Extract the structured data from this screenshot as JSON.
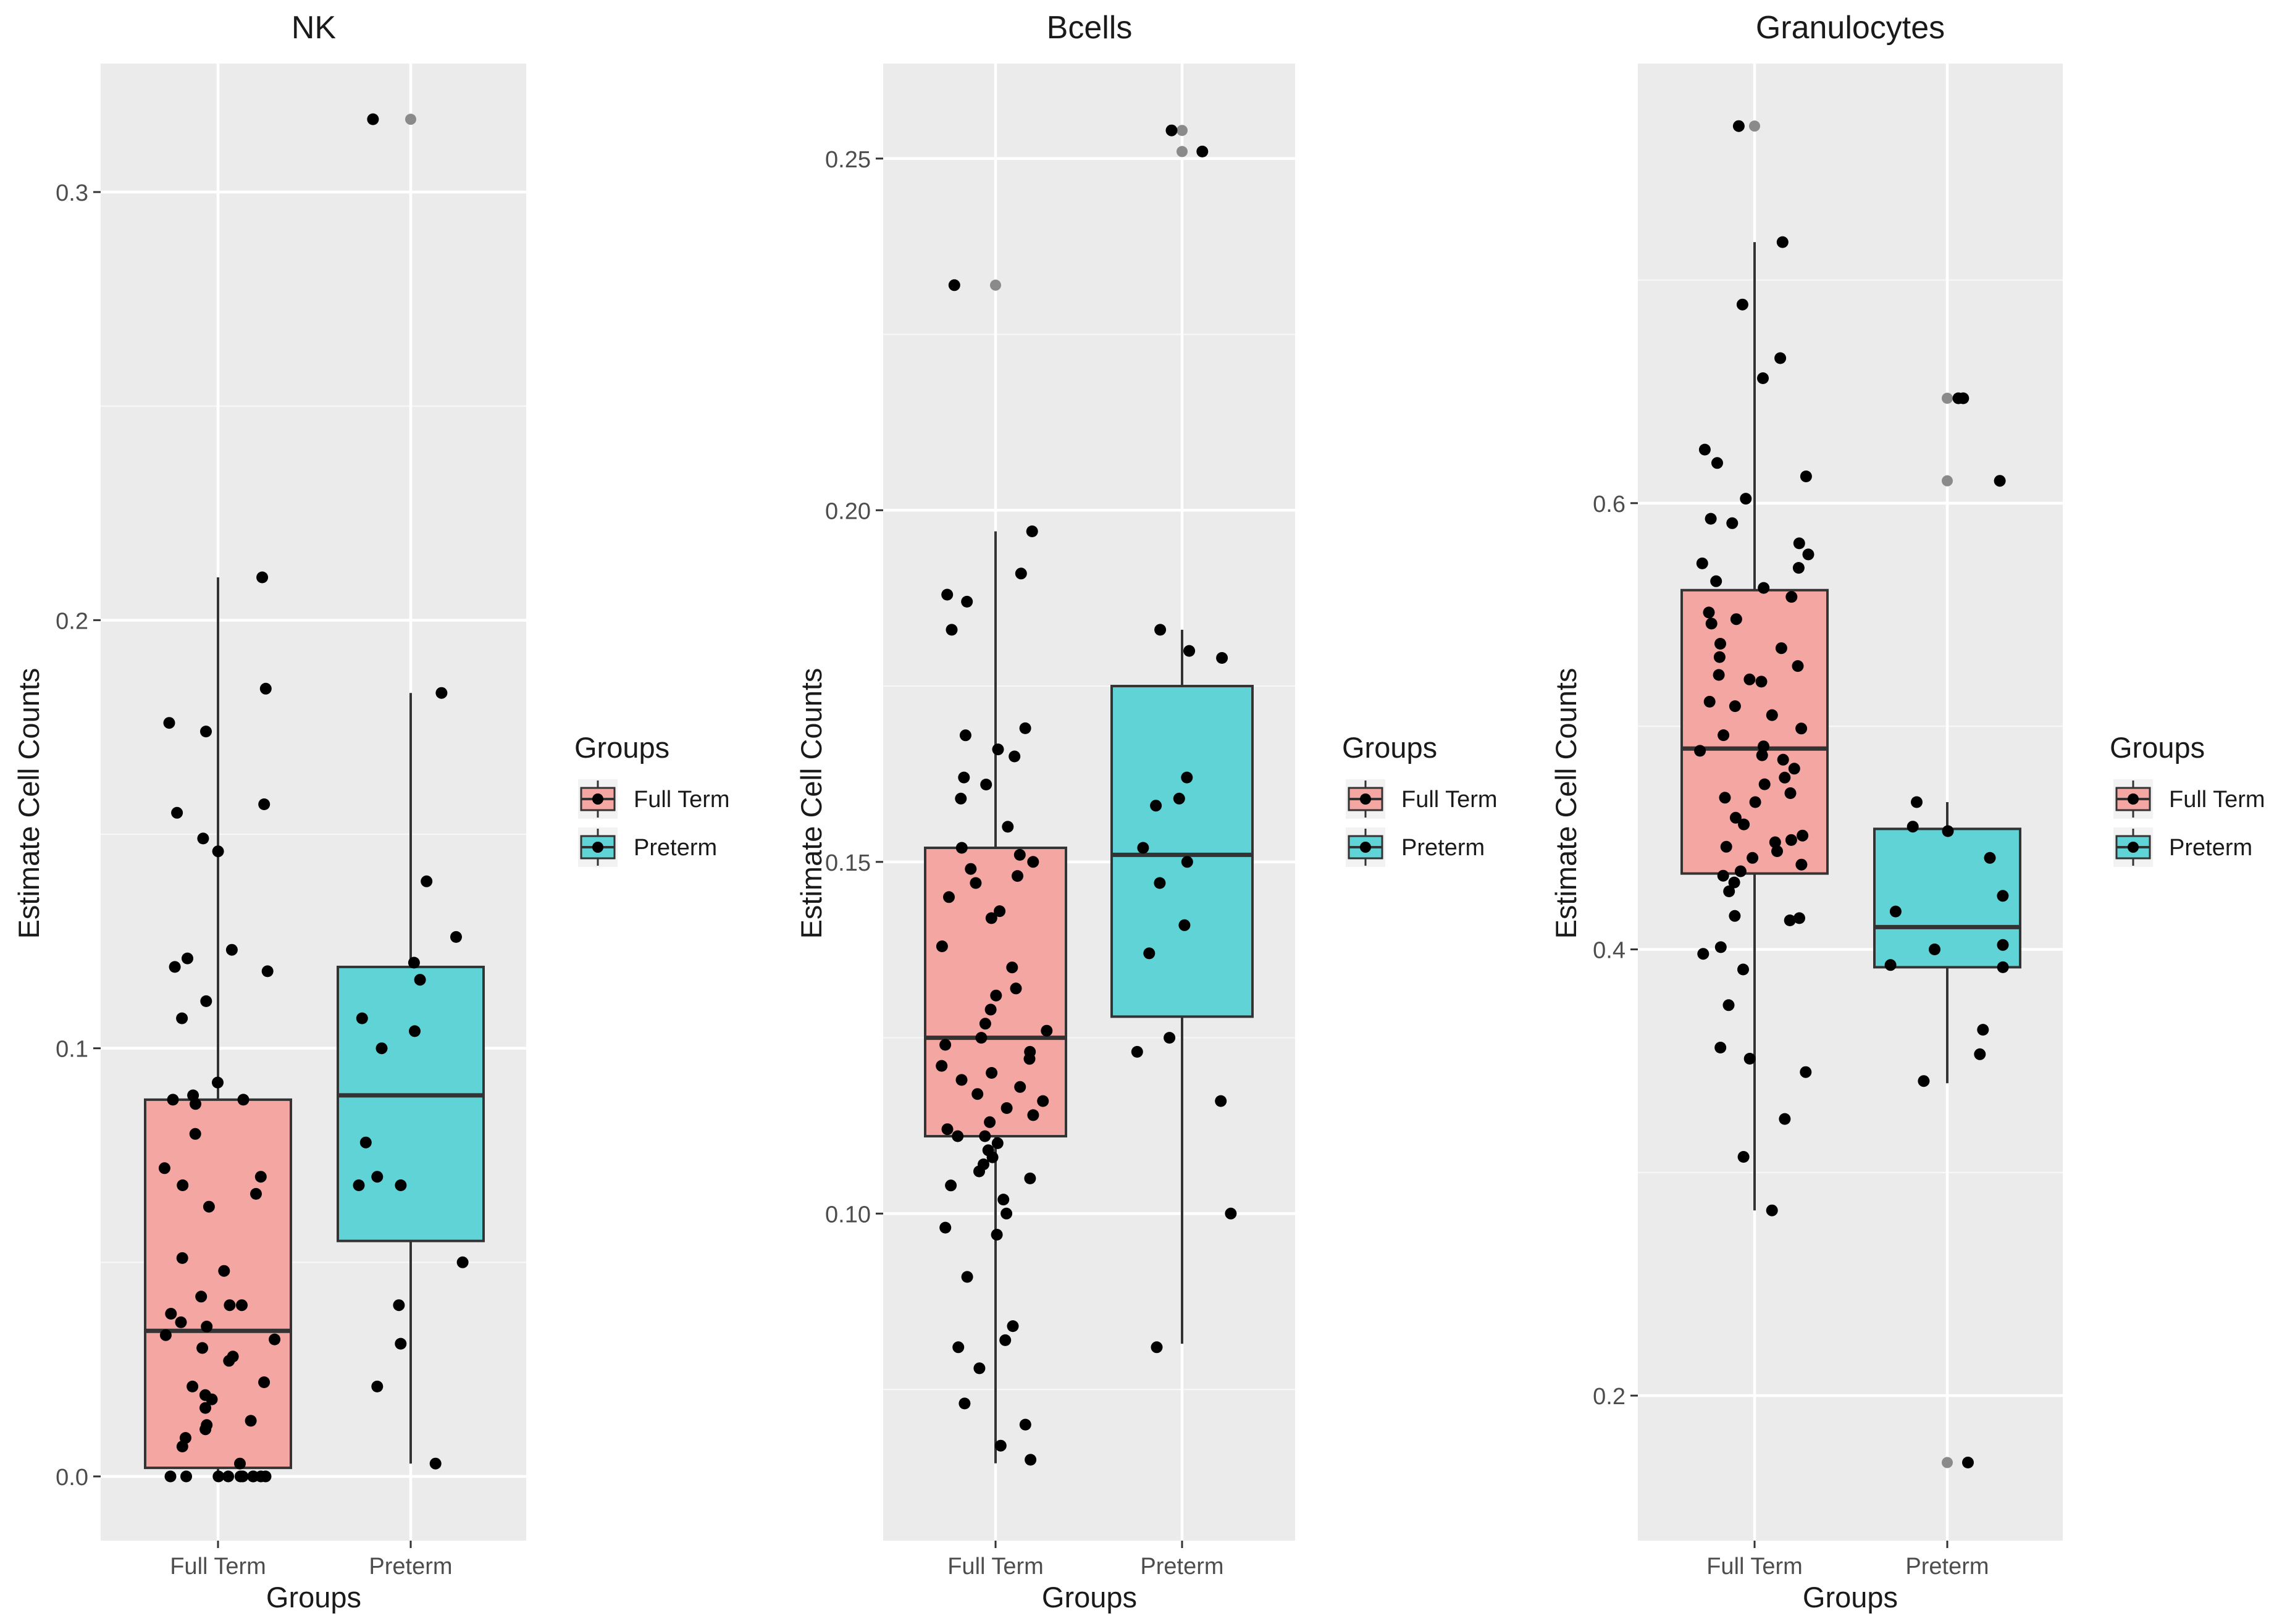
{
  "chart_data": [
    {
      "type": "boxplot",
      "title": "NK",
      "xlabel": "Groups",
      "ylabel": "Estimate Cell Counts",
      "categories": [
        "Full Term",
        "Preterm"
      ],
      "ylim": [
        -0.015,
        0.33
      ],
      "yticks": [
        0.0,
        0.1,
        0.2,
        0.3
      ],
      "ytick_labels": [
        "0.0",
        "0.1",
        "0.2",
        "0.3"
      ],
      "grid": true,
      "legend": {
        "title": "Groups",
        "entries": [
          "Full Term",
          "Preterm"
        ],
        "position": "right"
      },
      "boxes": [
        {
          "group": "Full Term",
          "whisker_low": 0.0,
          "q1": 0.002,
          "median": 0.034,
          "q3": 0.088,
          "whisker_high": 0.21,
          "outliers": []
        },
        {
          "group": "Preterm",
          "whisker_low": 0.003,
          "q1": 0.055,
          "median": 0.089,
          "q3": 0.119,
          "whisker_high": 0.183,
          "outliers": [
            0.317
          ]
        }
      ],
      "points": [
        {
          "group": "Full Term",
          "values": [
            0.21,
            0.184,
            0.176,
            0.174,
            0.157,
            0.155,
            0.149,
            0.146,
            0.123,
            0.121,
            0.119,
            0.118,
            0.111,
            0.107,
            0.092,
            0.089,
            0.088,
            0.088,
            0.087,
            0.08,
            0.072,
            0.07,
            0.068,
            0.066,
            0.063,
            0.051,
            0.048,
            0.042,
            0.04,
            0.04,
            0.038,
            0.036,
            0.035,
            0.033,
            0.032,
            0.03,
            0.028,
            0.027,
            0.022,
            0.021,
            0.019,
            0.018,
            0.016,
            0.013,
            0.012,
            0.011,
            0.009,
            0.007,
            0.003,
            0.0,
            0.0,
            0.0,
            0.0,
            0.0,
            0.0,
            0.0,
            0.0,
            0.0,
            0.0
          ]
        },
        {
          "group": "Preterm",
          "values": [
            0.317,
            0.183,
            0.139,
            0.126,
            0.12,
            0.116,
            0.107,
            0.104,
            0.1,
            0.078,
            0.07,
            0.068,
            0.068,
            0.05,
            0.04,
            0.031,
            0.021,
            0.003
          ]
        }
      ]
    },
    {
      "type": "boxplot",
      "title": "Bcells",
      "xlabel": "Groups",
      "ylabel": "Estimate Cell Counts",
      "categories": [
        "Full Term",
        "Preterm"
      ],
      "ylim": [
        0.0535,
        0.2635
      ],
      "yticks": [
        0.1,
        0.15,
        0.2,
        0.25
      ],
      "ytick_labels": [
        "0.10",
        "0.15",
        "0.20",
        "0.25"
      ],
      "grid": true,
      "legend": {
        "title": "Groups",
        "entries": [
          "Full Term",
          "Preterm"
        ],
        "position": "right"
      },
      "boxes": [
        {
          "group": "Full Term",
          "whisker_low": 0.0645,
          "q1": 0.111,
          "median": 0.125,
          "q3": 0.152,
          "whisker_high": 0.197,
          "outliers": [
            0.232
          ]
        },
        {
          "group": "Preterm",
          "whisker_low": 0.0815,
          "q1": 0.128,
          "median": 0.151,
          "q3": 0.175,
          "whisker_high": 0.183,
          "outliers": [
            0.254,
            0.251
          ]
        }
      ],
      "points": [
        {
          "group": "Full Term",
          "values": [
            0.232,
            0.197,
            0.191,
            0.188,
            0.187,
            0.183,
            0.169,
            0.168,
            0.166,
            0.165,
            0.162,
            0.161,
            0.159,
            0.155,
            0.152,
            0.151,
            0.15,
            0.149,
            0.148,
            0.147,
            0.145,
            0.143,
            0.142,
            0.138,
            0.135,
            0.132,
            0.131,
            0.129,
            0.127,
            0.126,
            0.125,
            0.124,
            0.123,
            0.122,
            0.121,
            0.12,
            0.119,
            0.118,
            0.117,
            0.116,
            0.115,
            0.114,
            0.113,
            0.112,
            0.111,
            0.111,
            0.11,
            0.109,
            0.108,
            0.107,
            0.106,
            0.105,
            0.104,
            0.102,
            0.1,
            0.098,
            0.097,
            0.091,
            0.084,
            0.082,
            0.081,
            0.078,
            0.073,
            0.07,
            0.067,
            0.065
          ]
        },
        {
          "group": "Preterm",
          "values": [
            0.254,
            0.251,
            0.183,
            0.18,
            0.179,
            0.162,
            0.159,
            0.158,
            0.152,
            0.15,
            0.147,
            0.141,
            0.137,
            0.125,
            0.123,
            0.116,
            0.1,
            0.081
          ]
        }
      ]
    },
    {
      "type": "boxplot",
      "title": "Granulocytes",
      "xlabel": "Groups",
      "ylabel": "Estimate Cell Counts",
      "categories": [
        "Full Term",
        "Preterm"
      ],
      "ylim": [
        0.135,
        0.797
      ],
      "yticks": [
        0.2,
        0.4,
        0.6
      ],
      "ytick_labels": [
        "0.2",
        "0.4",
        "0.6"
      ],
      "grid": true,
      "legend": {
        "title": "Groups",
        "entries": [
          "Full Term",
          "Preterm"
        ],
        "position": "right"
      },
      "boxes": [
        {
          "group": "Full Term",
          "whisker_low": 0.283,
          "q1": 0.434,
          "median": 0.49,
          "q3": 0.561,
          "whisker_high": 0.717,
          "outliers": [
            0.769
          ]
        },
        {
          "group": "Preterm",
          "whisker_low": 0.34,
          "q1": 0.392,
          "median": 0.41,
          "q3": 0.454,
          "whisker_high": 0.466,
          "outliers": [
            0.647,
            0.61,
            0.17
          ]
        }
      ],
      "points": [
        {
          "group": "Full Term",
          "values": [
            0.769,
            0.717,
            0.689,
            0.665,
            0.656,
            0.624,
            0.618,
            0.612,
            0.602,
            0.593,
            0.591,
            0.582,
            0.577,
            0.573,
            0.571,
            0.565,
            0.562,
            0.558,
            0.551,
            0.548,
            0.546,
            0.537,
            0.535,
            0.531,
            0.527,
            0.523,
            0.521,
            0.52,
            0.511,
            0.509,
            0.505,
            0.499,
            0.496,
            0.491,
            0.489,
            0.487,
            0.485,
            0.481,
            0.477,
            0.474,
            0.47,
            0.468,
            0.466,
            0.459,
            0.456,
            0.451,
            0.449,
            0.448,
            0.446,
            0.444,
            0.441,
            0.438,
            0.435,
            0.433,
            0.43,
            0.426,
            0.415,
            0.414,
            0.413,
            0.401,
            0.398,
            0.391,
            0.375,
            0.356,
            0.351,
            0.345,
            0.324,
            0.307,
            0.283
          ]
        },
        {
          "group": "Preterm",
          "values": [
            0.647,
            0.647,
            0.61,
            0.466,
            0.455,
            0.453,
            0.441,
            0.424,
            0.417,
            0.402,
            0.4,
            0.393,
            0.392,
            0.364,
            0.353,
            0.341,
            0.17
          ]
        }
      ]
    }
  ],
  "colors": {
    "panel_bg": "#ebebeb",
    "grid_major": "#ffffff",
    "full_term_fill": "#f4a6a3",
    "preterm_fill": "#5fd3d6",
    "point": "#000000",
    "outlier": "#8a8a8a",
    "box_line": "#333333",
    "text": "#1a1a1a",
    "axis_text": "#4d4d4d"
  }
}
